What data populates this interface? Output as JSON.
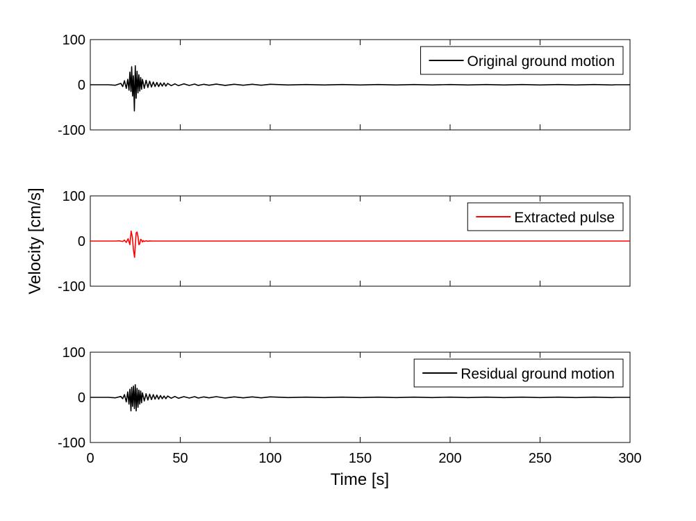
{
  "chart_data": {
    "type": "line",
    "xlabel": "Time [s]",
    "ylabel": "Velocity [cm/s]",
    "xlim": [
      0,
      300
    ],
    "xticks": [
      0,
      50,
      100,
      150,
      200,
      250,
      300
    ],
    "xtick_labels": [
      "0",
      "50",
      "100",
      "150",
      "200",
      "250",
      "300"
    ],
    "grid": false,
    "panels": [
      {
        "legend": "Original ground motion",
        "legend_position": "top-right",
        "color": "#000000",
        "ylim": [
          -100,
          100
        ],
        "yticks": [
          -100,
          0,
          100
        ],
        "ytick_labels": [
          "-100",
          "0",
          "100"
        ],
        "series": {
          "name": "Original ground motion",
          "x": [
            0,
            10,
            14,
            17,
            18,
            19,
            20,
            20.8,
            21.5,
            22,
            22.6,
            23,
            23.5,
            24,
            24.5,
            25,
            25.5,
            26,
            26.5,
            27,
            27.5,
            28,
            28.5,
            29,
            30,
            31,
            32,
            33,
            34,
            35,
            36,
            37,
            38,
            39,
            40,
            41,
            42,
            43,
            45,
            47,
            49,
            52,
            55,
            58,
            60,
            63,
            66,
            70,
            75,
            80,
            85,
            90,
            95,
            100,
            110,
            120,
            130,
            140,
            150,
            160,
            170,
            180,
            190,
            200,
            210,
            220,
            230,
            240,
            250,
            260,
            270,
            280,
            290,
            292,
            300
          ],
          "y": [
            0,
            0,
            -1,
            3,
            -4,
            9,
            -8,
            12,
            -12,
            28,
            -15,
            40,
            -25,
            20,
            -58,
            42,
            -30,
            30,
            -18,
            22,
            -14,
            16,
            -10,
            12,
            -8,
            10,
            -6,
            8,
            -5,
            6,
            -4,
            5,
            -4,
            4,
            -3,
            4,
            -3,
            3,
            -2,
            2,
            -2,
            2,
            -1.5,
            1.5,
            -1.5,
            1,
            -1,
            1.5,
            -1.5,
            1,
            -1,
            1,
            -1,
            1,
            -0.5,
            0.5,
            -0.5,
            0.5,
            -0.5,
            0.5,
            -0.5,
            0.5,
            -0.5,
            0.5,
            -0.5,
            0.5,
            -0.5,
            0.5,
            -0.5,
            0.5,
            -0.5,
            0.5,
            -0.5,
            0,
            0
          ]
        }
      },
      {
        "legend": "Extracted pulse",
        "legend_position": "top-right",
        "color": "#ff0000",
        "ylim": [
          -100,
          100
        ],
        "yticks": [
          -100,
          0,
          100
        ],
        "ytick_labels": [
          "-100",
          "0",
          "100"
        ],
        "series": {
          "name": "Extracted pulse",
          "x": [
            0,
            14,
            16,
            18,
            19,
            20,
            21,
            22,
            22.7,
            23.4,
            24,
            24.6,
            25,
            25.5,
            26,
            26.6,
            27,
            27.5,
            28,
            28.5,
            29,
            29.5,
            30,
            31,
            32,
            33,
            34,
            35,
            300
          ],
          "y": [
            0,
            0,
            0.5,
            -1,
            2,
            -3,
            5,
            -8,
            22,
            8,
            -20,
            -36,
            -10,
            18,
            20,
            8,
            -8,
            -6,
            4,
            2,
            -2,
            1,
            -1,
            0.5,
            -0.5,
            0.3,
            0,
            0,
            0
          ]
        }
      },
      {
        "legend": "Residual ground motion",
        "legend_position": "top-right",
        "color": "#000000",
        "ylim": [
          -100,
          100
        ],
        "yticks": [
          -100,
          0,
          100
        ],
        "ytick_labels": [
          "-100",
          "0",
          "100"
        ],
        "series": {
          "name": "Residual ground motion",
          "x": [
            0,
            10,
            14,
            17,
            18,
            19,
            20,
            20.8,
            21.5,
            22,
            22.6,
            23,
            23.5,
            24,
            24.5,
            25,
            25.5,
            26,
            26.5,
            27,
            27.5,
            28,
            28.5,
            29,
            30,
            31,
            32,
            33,
            34,
            35,
            36,
            37,
            38,
            39,
            40,
            41,
            42,
            43,
            45,
            47,
            49,
            52,
            55,
            58,
            60,
            63,
            66,
            70,
            75,
            80,
            85,
            90,
            95,
            100,
            110,
            120,
            130,
            140,
            150,
            160,
            170,
            180,
            190,
            200,
            210,
            220,
            230,
            240,
            250,
            260,
            270,
            280,
            290,
            292,
            300
          ],
          "y": [
            0,
            0,
            -1,
            2,
            -3,
            6,
            -10,
            12,
            -15,
            18,
            -30,
            22,
            -20,
            25,
            -25,
            28,
            -30,
            20,
            -22,
            16,
            -15,
            14,
            -12,
            10,
            -8,
            8,
            -6,
            7,
            -5,
            6,
            -4,
            5,
            -4,
            4,
            -3,
            3,
            -3,
            3,
            -2,
            2,
            -2,
            1.5,
            -1.5,
            1.5,
            -1.5,
            1,
            -1,
            1.5,
            -1.5,
            1,
            -1,
            1,
            -1,
            1,
            -0.5,
            0.5,
            -0.5,
            0.5,
            -0.5,
            0.5,
            -0.5,
            0.5,
            -0.5,
            0.5,
            -0.5,
            0.5,
            -0.5,
            0.5,
            -0.5,
            0.5,
            -0.5,
            0.5,
            -0.5,
            0,
            0
          ]
        }
      }
    ]
  }
}
